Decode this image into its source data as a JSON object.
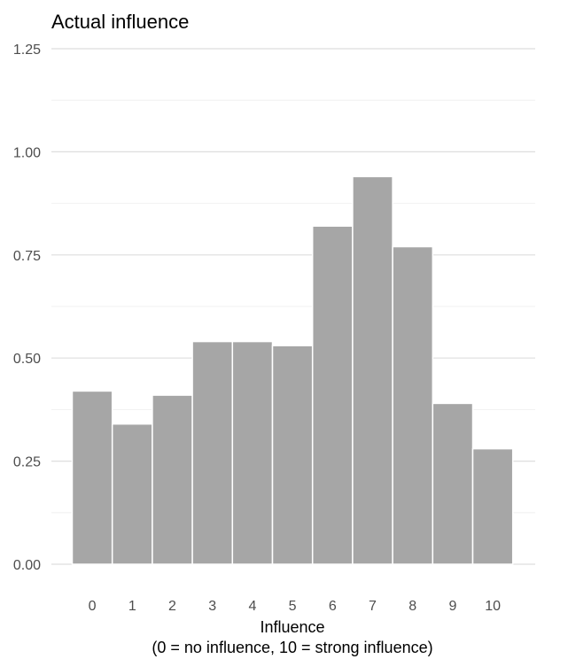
{
  "chart_data": {
    "type": "bar",
    "title": "Actual influence",
    "xlabel": "Influence",
    "xlabel_sub": "(0 = no influence, 10 = strong influence)",
    "ylabel": "",
    "categories": [
      "0",
      "1",
      "2",
      "3",
      "4",
      "5",
      "6",
      "7",
      "8",
      "9",
      "10"
    ],
    "values": [
      0.42,
      0.34,
      0.41,
      0.54,
      0.54,
      0.53,
      0.82,
      0.94,
      0.77,
      0.39,
      0.28
    ],
    "ylim": [
      0,
      1.25
    ],
    "yticks": [
      "0.00",
      "0.25",
      "0.50",
      "0.75",
      "1.00",
      "1.25"
    ],
    "grid": true,
    "legend": "none",
    "bar_color": "#a6a6a6",
    "bar_edge_color": "#ffffff",
    "grid_color": "#dedede"
  }
}
